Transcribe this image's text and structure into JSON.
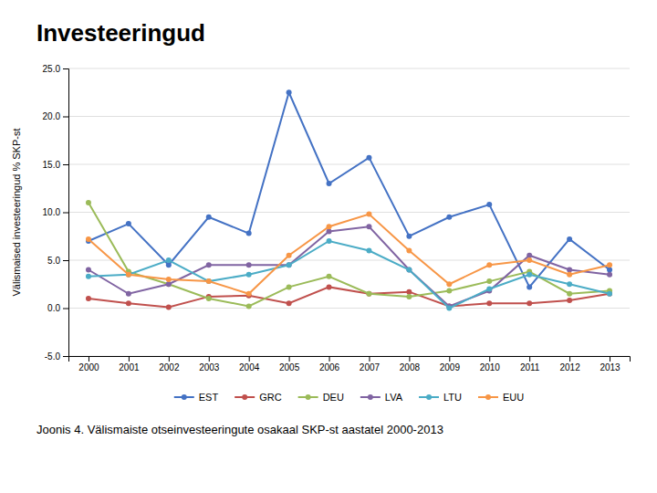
{
  "chart_data": {
    "type": "line",
    "title": "Investeeringud",
    "caption": "Joonis 4. Välismaiste otseinvesteeringute osakaal SKP-st aastatel 2000-2013",
    "ylabel": "Välismaised investeeringud % SKP-st",
    "x": [
      2000,
      2001,
      2002,
      2003,
      2004,
      2005,
      2006,
      2007,
      2008,
      2009,
      2010,
      2011,
      2012,
      2013
    ],
    "xlim": [
      1999.5,
      2013.5
    ],
    "xticks": [
      2000,
      2001,
      2002,
      2003,
      2004,
      2005,
      2006,
      2007,
      2008,
      2009,
      2010,
      2011,
      2012,
      2013
    ],
    "ylim": [
      -5.0,
      25.0
    ],
    "yticks": [
      {
        "value": -5.0,
        "label": "-5.0"
      },
      {
        "value": 0.0,
        "label": "0.0"
      },
      {
        "value": 5.0,
        "label": "5.0"
      },
      {
        "value": 10.0,
        "label": "10.0"
      },
      {
        "value": 15.0,
        "label": "15.0"
      },
      {
        "value": 20.0,
        "label": "20.0"
      },
      {
        "value": 25.0,
        "label": "25.0"
      }
    ],
    "grid": true,
    "legend": "bottom",
    "series": [
      {
        "name": "EST",
        "color": "#4472C4",
        "marker": "circle",
        "values": [
          7.0,
          8.8,
          4.5,
          9.5,
          7.8,
          22.5,
          13.0,
          15.7,
          7.5,
          9.5,
          10.8,
          2.2,
          7.2,
          4.0
        ]
      },
      {
        "name": "GRC",
        "color": "#C0504D",
        "marker": "circle",
        "values": [
          1.0,
          0.5,
          0.1,
          1.2,
          1.3,
          0.5,
          2.2,
          1.5,
          1.7,
          0.2,
          0.5,
          0.5,
          0.8,
          1.5
        ]
      },
      {
        "name": "DEU",
        "color": "#9BBB59",
        "marker": "circle",
        "values": [
          11.0,
          3.8,
          2.5,
          1.0,
          0.2,
          2.2,
          3.3,
          1.5,
          1.2,
          1.8,
          2.8,
          3.8,
          1.5,
          1.8
        ]
      },
      {
        "name": "LVA",
        "color": "#8064A2",
        "marker": "circle",
        "values": [
          4.0,
          1.5,
          2.5,
          4.5,
          4.5,
          4.5,
          8.0,
          8.5,
          4.0,
          0.2,
          1.8,
          5.5,
          4.0,
          3.5
        ]
      },
      {
        "name": "LTU",
        "color": "#4BACC6",
        "marker": "circle",
        "values": [
          3.3,
          3.5,
          5.0,
          2.8,
          3.5,
          4.5,
          7.0,
          6.0,
          4.0,
          0.0,
          2.0,
          3.5,
          2.5,
          1.5
        ]
      },
      {
        "name": "EUU",
        "color": "#F79646",
        "marker": "circle",
        "values": [
          7.2,
          3.5,
          3.0,
          2.8,
          1.5,
          5.5,
          8.5,
          9.8,
          6.0,
          2.5,
          4.5,
          5.0,
          3.5,
          4.5
        ]
      }
    ]
  }
}
